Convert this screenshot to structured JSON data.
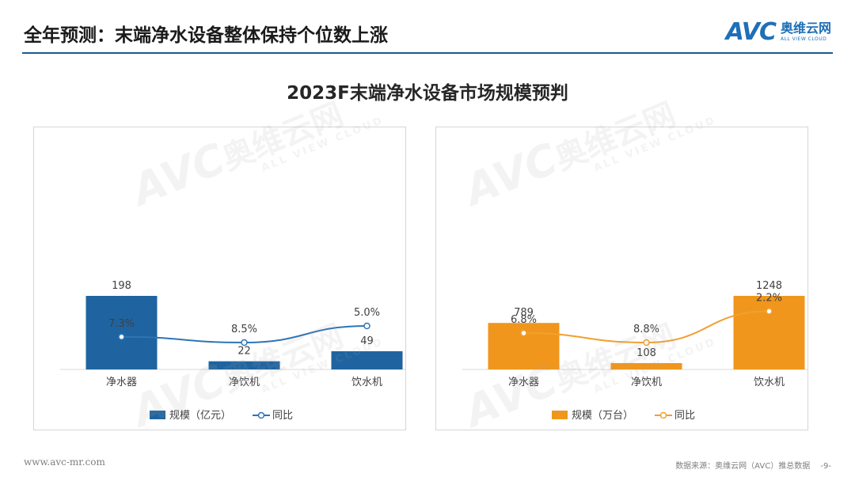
{
  "header": {
    "title": "全年预测：末端净水设备整体保持个位数上涨",
    "logo_mark": "AVC",
    "logo_cn": "奥维云网",
    "logo_en": "ALL VIEW CLOUD"
  },
  "main_title": "2023F末端净水设备市场规模预判",
  "watermark": {
    "mark": "AVC",
    "cn": "奥维云网",
    "en": "ALL VIEW CLOUD"
  },
  "chart_data": [
    {
      "type": "bar",
      "categories": [
        "净水器",
        "净饮机",
        "饮水机"
      ],
      "series": [
        {
          "name": "规模（亿元）",
          "type": "bar",
          "values": [
            198,
            22,
            49
          ],
          "color": "#1f64a0"
        },
        {
          "name": "同比",
          "type": "line",
          "values": [
            7.3,
            8.5,
            5.0
          ],
          "labels": [
            "7.3%",
            "8.5%",
            "5.0%"
          ],
          "color": "#2e75b6"
        }
      ],
      "legend_position": "bottom",
      "grid": false
    },
    {
      "type": "bar",
      "categories": [
        "净水器",
        "净饮机",
        "饮水机"
      ],
      "series": [
        {
          "name": "规模（万台）",
          "type": "bar",
          "values": [
            789,
            108,
            1248
          ],
          "color": "#f0961c"
        },
        {
          "name": "同比",
          "type": "line",
          "values": [
            6.8,
            8.8,
            2.2
          ],
          "labels": [
            "6.8%",
            "8.8%",
            "2.2%"
          ],
          "color": "#f0a030"
        }
      ],
      "legend_position": "bottom",
      "grid": false
    }
  ],
  "footer": {
    "website": "www.avc-mr.com",
    "source": "数据来源：奥维云网（AVC）推总数据",
    "page": "-9-"
  }
}
